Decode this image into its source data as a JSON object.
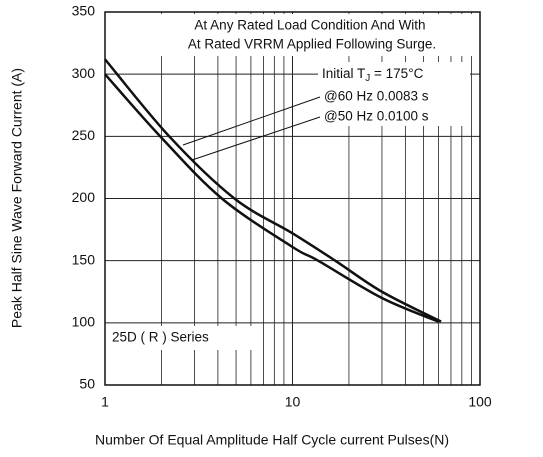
{
  "chart_data": {
    "type": "line",
    "xlabel": "Number Of Equal Amplitude Half Cycle current Pulses(N)",
    "ylabel": "Peak Half Sine Wave Forward Current (A)",
    "xlog": true,
    "grid": true,
    "xlim": [
      1,
      100
    ],
    "xticks": [
      1,
      10,
      100
    ],
    "x_minor_ticks": [
      2,
      3,
      4,
      5,
      6,
      7,
      8,
      9,
      20,
      30,
      40,
      50,
      60,
      70,
      80,
      90
    ],
    "ylim": [
      50,
      350
    ],
    "yticks": [
      50,
      100,
      150,
      200,
      250,
      300,
      350
    ],
    "series": [
      {
        "name": "@60 Hz 0.0083 s",
        "color": "#111111",
        "x": [
          1,
          2.2,
          4.9,
          10,
          16.9,
          30,
          62
        ],
        "values": [
          312,
          250,
          200,
          172,
          150,
          125,
          101
        ]
      },
      {
        "name": "@50 Hz 0.0100 s",
        "color": "#111111",
        "x": [
          1,
          1.97,
          4.2,
          10,
          13.7,
          30,
          60
        ],
        "values": [
          300,
          250,
          200,
          161,
          150,
          120,
          101
        ]
      }
    ],
    "annotations": {
      "condition_line1": "At Any Rated Load Condition And With",
      "condition_line2": "At Rated VRRM Applied Following Surge.",
      "initial_temp": {
        "text": "Initial T",
        "subscript": "J",
        "suffix": " = 175°C"
      },
      "part": "25D ( R )  Series"
    }
  }
}
